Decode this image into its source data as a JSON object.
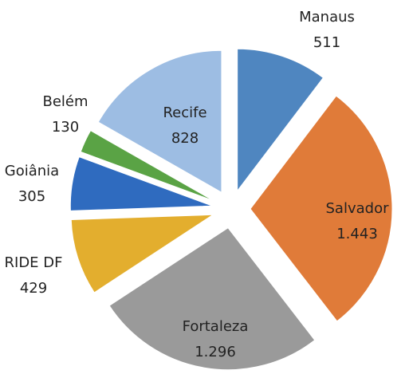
{
  "chart_data": {
    "type": "pie",
    "categories": [
      "Manaus",
      "Salvador",
      "Fortaleza",
      "RIDE DF",
      "Goiânia",
      "Belém",
      "Recife"
    ],
    "values": [
      511,
      1443,
      1296,
      429,
      305,
      130,
      828
    ],
    "value_labels": [
      "511",
      "1.443",
      "1.296",
      "429",
      "305",
      "130",
      "828"
    ],
    "colors": [
      "#4f86c0",
      "#e07b39",
      "#9a9a9a",
      "#e3ae2e",
      "#2f6bbf",
      "#5aa345",
      "#9dbde3"
    ]
  }
}
